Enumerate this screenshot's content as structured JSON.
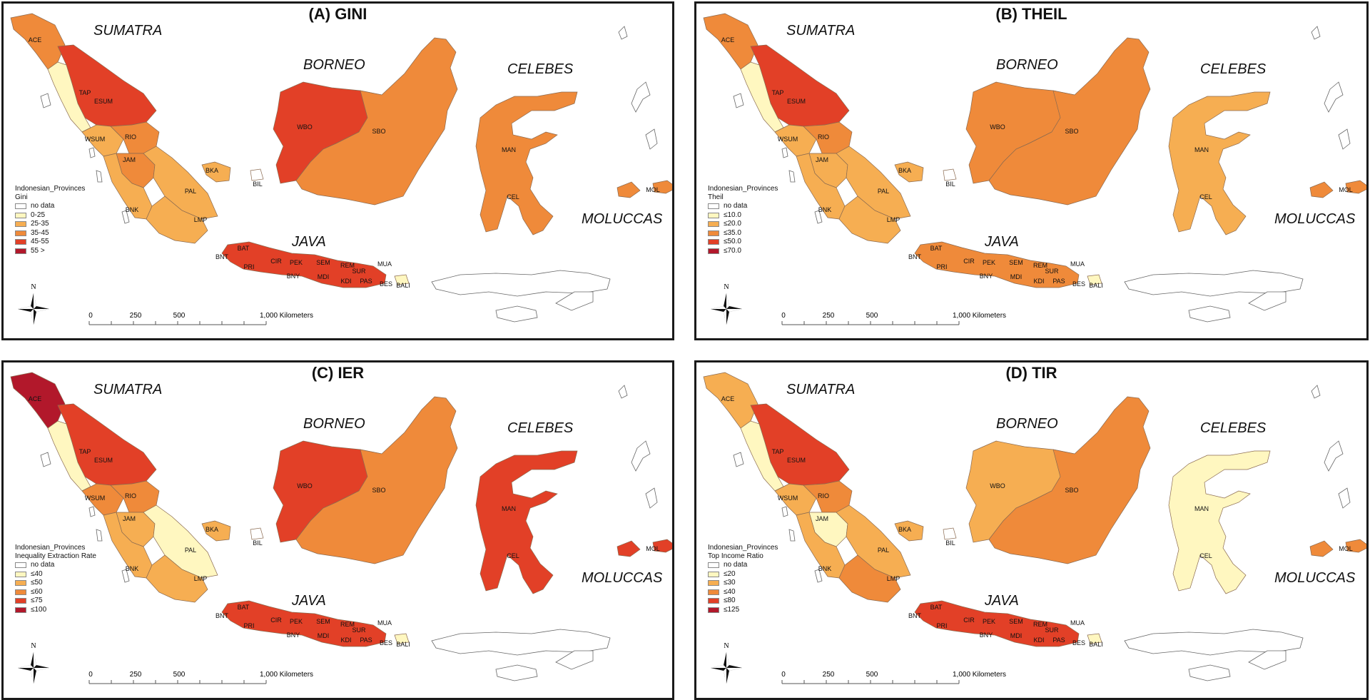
{
  "panels": [
    {
      "title": "(A) GINI",
      "legend": {
        "heading": "Indonesian_Provinces",
        "field": "Gini",
        "classes": [
          {
            "label": "no data",
            "color": "#ffffff"
          },
          {
            "label": "0-25",
            "color": "#fff7c0"
          },
          {
            "label": "25-35",
            "color": "#f6ae52"
          },
          {
            "label": "35-45",
            "color": "#ef8a3a"
          },
          {
            "label": "45-55",
            "color": "#e24027"
          },
          {
            "label": "55 >",
            "color": "#b2182b"
          }
        ]
      },
      "regions": {
        "ACE": "#ef8a3a",
        "ESUM": "#e24027",
        "TAP": "#fff7c0",
        "WSUM": "#f6ae52",
        "RIO": "#ef8a3a",
        "JAM": "#ef8a3a",
        "PAL": "#f6ae52",
        "BNK": "#f6ae52",
        "LMP": "#f6ae52",
        "BKA": "#f6ae52",
        "WBO": "#e24027",
        "SBO": "#ef8a3a",
        "CEL": "#ef8a3a",
        "MOL": "#ef8a3a",
        "JAVA": "#e24027",
        "BALI": "#fff7c0"
      }
    },
    {
      "title": "(B) THEIL",
      "legend": {
        "heading": "Indonesian_Provinces",
        "field": "Theil",
        "classes": [
          {
            "label": "no data",
            "color": "#ffffff"
          },
          {
            "label": "≤10.0",
            "color": "#fff7c0"
          },
          {
            "label": "≤20.0",
            "color": "#f6ae52"
          },
          {
            "label": "≤35.0",
            "color": "#ef8a3a"
          },
          {
            "label": "≤50.0",
            "color": "#e24027"
          },
          {
            "label": "≤70.0",
            "color": "#b2182b"
          }
        ]
      },
      "regions": {
        "ACE": "#ef8a3a",
        "ESUM": "#e24027",
        "TAP": "#fff7c0",
        "WSUM": "#f6ae52",
        "RIO": "#ef8a3a",
        "JAM": "#f6ae52",
        "PAL": "#f6ae52",
        "BNK": "#f6ae52",
        "LMP": "#f6ae52",
        "BKA": "#f6ae52",
        "WBO": "#ef8a3a",
        "SBO": "#ef8a3a",
        "CEL": "#f6ae52",
        "MOL": "#ef8a3a",
        "JAVA": "#ef8a3a",
        "BALI": "#fff7c0"
      }
    },
    {
      "title": "(C) IER",
      "legend": {
        "heading": "Indonesian_Provinces",
        "field": "Inequality Extraction Rate",
        "classes": [
          {
            "label": "no data",
            "color": "#ffffff"
          },
          {
            "label": "≤40",
            "color": "#fff7c0"
          },
          {
            "label": "≤50",
            "color": "#f6ae52"
          },
          {
            "label": "≤60",
            "color": "#ef8a3a"
          },
          {
            "label": "≤75",
            "color": "#e24027"
          },
          {
            "label": "≤100",
            "color": "#b2182b"
          }
        ]
      },
      "regions": {
        "ACE": "#b2182b",
        "ESUM": "#e24027",
        "TAP": "#fff7c0",
        "WSUM": "#ef8a3a",
        "RIO": "#ef8a3a",
        "JAM": "#f6ae52",
        "PAL": "#fff7c0",
        "BNK": "#f6ae52",
        "LMP": "#f6ae52",
        "BKA": "#f6ae52",
        "WBO": "#e24027",
        "SBO": "#ef8a3a",
        "CEL": "#e24027",
        "MOL": "#e24027",
        "JAVA": "#e24027",
        "BALI": "#fff7c0"
      }
    },
    {
      "title": "(D) TIR",
      "legend": {
        "heading": "Indonesian_Provinces",
        "field": "Top Income Ratio",
        "classes": [
          {
            "label": "no data",
            "color": "#ffffff"
          },
          {
            "label": "≤20",
            "color": "#fff7c0"
          },
          {
            "label": "≤30",
            "color": "#f6ae52"
          },
          {
            "label": "≤40",
            "color": "#ef8a3a"
          },
          {
            "label": "≤80",
            "color": "#e24027"
          },
          {
            "label": "≤125",
            "color": "#b2182b"
          }
        ]
      },
      "regions": {
        "ACE": "#f6ae52",
        "ESUM": "#e24027",
        "TAP": "#fff7c0",
        "WSUM": "#f6ae52",
        "RIO": "#ef8a3a",
        "JAM": "#fff7c0",
        "PAL": "#f6ae52",
        "BNK": "#f6ae52",
        "LMP": "#ef8a3a",
        "BKA": "#f6ae52",
        "WBO": "#f6ae52",
        "SBO": "#ef8a3a",
        "CEL": "#fff7c0",
        "MOL": "#ef8a3a",
        "JAVA": "#e24027",
        "BALI": "#fff7c0"
      }
    }
  ],
  "islands": [
    "SUMATRA",
    "BORNEO",
    "CELEBES",
    "JAVA",
    "MOLUCCAS"
  ],
  "province_labels": [
    "ACE",
    "TAP",
    "ESUM",
    "WSUM",
    "RIO",
    "JAM",
    "BKA",
    "BIL",
    "PAL",
    "BNK",
    "LMP",
    "WBO",
    "SBO",
    "MAN",
    "CEL",
    "MOL",
    "BNT",
    "BAT",
    "PRI",
    "CIR",
    "PEK",
    "BNY",
    "SEM",
    "MDI",
    "REM",
    "SUR",
    "KDI",
    "PAS",
    "MUA",
    "BES",
    "BALI"
  ],
  "north_label": "N",
  "scale": {
    "ticks": [
      "0",
      "250",
      "500",
      "1,000 Kilometers"
    ]
  }
}
